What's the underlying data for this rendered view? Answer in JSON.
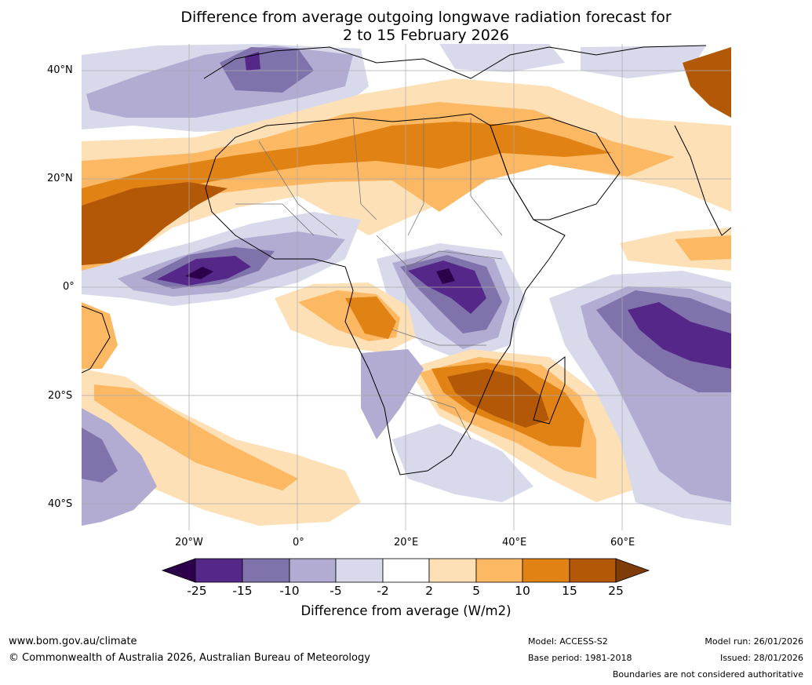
{
  "title": {
    "line1": "Difference from average outgoing longwave radiation forecast for",
    "line2": "2 to 15 February 2026"
  },
  "map": {
    "lat_labels": [
      "40°N",
      "20°N",
      "0°",
      "20°S",
      "40°S"
    ],
    "lon_labels": [
      "20°W",
      "0°",
      "20°E",
      "40°E",
      "60°E"
    ]
  },
  "colorbar": {
    "ticks": [
      "-25",
      "-15",
      "-10",
      "-5",
      "-2",
      "2",
      "5",
      "10",
      "15",
      "25"
    ],
    "label": "Difference from average (W/m2)",
    "colors": {
      "lt_-25": "#2d004b",
      "-25_-15": "#542788",
      "-15_-10": "#8073ac",
      "-10_-5": "#b2abd2",
      "-5_-2": "#d8daeb",
      "-2_2": "#ffffff",
      "2_5": "#fee0b6",
      "5_10": "#fdb863",
      "10_15": "#e08214",
      "15_25": "#b35806",
      "gt_25": "#7f3b08"
    }
  },
  "footer": {
    "url": "www.bom.gov.au/climate",
    "copyright": "© Commonwealth of Australia 2026, Australian Bureau of Meteorology",
    "model": "Model: ACCESS-S2",
    "base_period": "Base period: 1981-2018",
    "model_run": "Model run: 26/01/2026",
    "issued": "Issued: 28/01/2026",
    "disclaimer": "Boundaries are not considered authoritative"
  }
}
